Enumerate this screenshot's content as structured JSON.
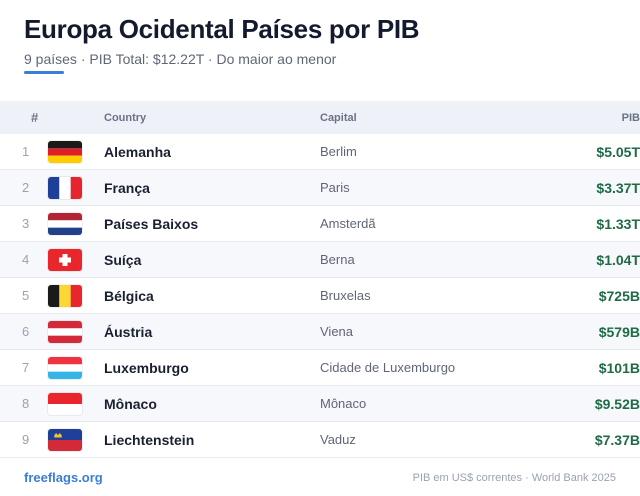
{
  "header": {
    "title": "Europa Ocidental Países por PIB",
    "subtitle": "9 países · PIB Total: $12.22T · Do maior ao menor"
  },
  "table": {
    "columns": {
      "num": "#",
      "country": "Country",
      "capital": "Capital",
      "gdp": "PIB"
    },
    "rows": [
      {
        "rank": "1",
        "flag": "germany-flag",
        "country": "Alemanha",
        "capital": "Berlim",
        "gdp": "$5.05T"
      },
      {
        "rank": "2",
        "flag": "france-flag",
        "country": "França",
        "capital": "Paris",
        "gdp": "$3.37T"
      },
      {
        "rank": "3",
        "flag": "netherlands-flag",
        "country": "Países Baixos",
        "capital": "Amsterdã",
        "gdp": "$1.33T"
      },
      {
        "rank": "4",
        "flag": "switzerland-flag",
        "country": "Suíça",
        "capital": "Berna",
        "gdp": "$1.04T"
      },
      {
        "rank": "5",
        "flag": "belgium-flag",
        "country": "Bélgica",
        "capital": "Bruxelas",
        "gdp": "$725B"
      },
      {
        "rank": "6",
        "flag": "austria-flag",
        "country": "Áustria",
        "capital": "Viena",
        "gdp": "$579B"
      },
      {
        "rank": "7",
        "flag": "luxembourg-flag",
        "country": "Luxemburgo",
        "capital": "Cidade de Luxemburgo",
        "gdp": "$101B"
      },
      {
        "rank": "8",
        "flag": "monaco-flag",
        "country": "Mônaco",
        "capital": "Mônaco",
        "gdp": "$9.52B"
      },
      {
        "rank": "9",
        "flag": "liechtenstein-flag",
        "country": "Liechtenstein",
        "capital": "Vaduz",
        "gdp": "$7.37B"
      }
    ]
  },
  "footer": {
    "link": "freeflags.org",
    "note": "PIB em US$ correntes · World Bank 2025"
  },
  "colors": {
    "accent": "#3b7dd8",
    "gdp_text": "#1e6b46"
  }
}
